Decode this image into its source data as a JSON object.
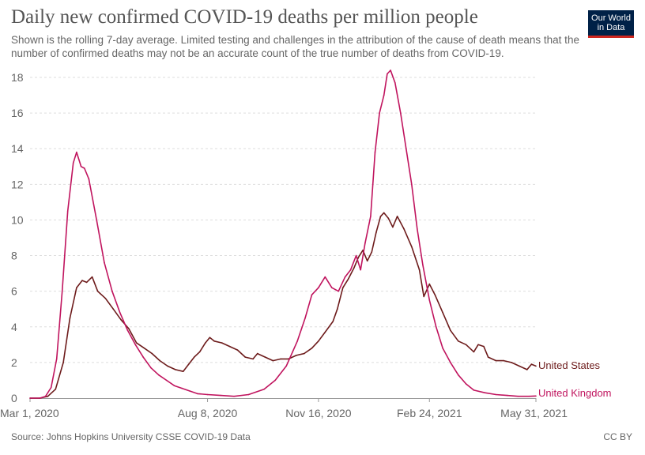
{
  "header": {
    "title": "Daily new confirmed COVID-19 deaths per million people",
    "subtitle": "Shown is the rolling 7-day average. Limited testing and challenges in the attribution of the cause of death means that the number of confirmed deaths may not be an accurate count of the true number of deaths from COVID-19.",
    "logo_line1": "Our World",
    "logo_line2": "in Data"
  },
  "footer": {
    "source": "Source: Johns Hopkins University CSSE COVID-19 Data",
    "license": "CC BY"
  },
  "colors": {
    "united_states": "#6d1b1b",
    "united_kingdom": "#c0145e",
    "logo_bg": "#002147",
    "logo_accent": "#ce261e",
    "gridline": "#dddddd"
  },
  "chart_data": {
    "type": "line",
    "x_type": "date",
    "xlim": [
      "2020-03-01",
      "2021-05-31"
    ],
    "ylim": [
      0,
      18
    ],
    "grid": true,
    "gridline_style": "dashed",
    "legend_placement": "end-of-line labels",
    "ylabel": "",
    "xlabel": "",
    "y_ticks": [
      0,
      2,
      4,
      6,
      8,
      10,
      12,
      14,
      16,
      18
    ],
    "x_ticks": [
      {
        "date": "2020-03-01",
        "label": "Mar 1, 2020"
      },
      {
        "date": "2020-08-08",
        "label": "Aug 8, 2020"
      },
      {
        "date": "2020-11-16",
        "label": "Nov 16, 2020"
      },
      {
        "date": "2021-02-24",
        "label": "Feb 24, 2021"
      },
      {
        "date": "2021-05-31",
        "label": "May 31, 2021"
      }
    ],
    "series": [
      {
        "name": "United States",
        "color": "#6d1b1b",
        "points": [
          [
            "2020-03-01",
            0
          ],
          [
            "2020-03-10",
            0
          ],
          [
            "2020-03-17",
            0.1
          ],
          [
            "2020-03-24",
            0.5
          ],
          [
            "2020-03-31",
            2.0
          ],
          [
            "2020-04-06",
            4.5
          ],
          [
            "2020-04-12",
            6.2
          ],
          [
            "2020-04-17",
            6.6
          ],
          [
            "2020-04-21",
            6.5
          ],
          [
            "2020-04-26",
            6.8
          ],
          [
            "2020-05-01",
            6.0
          ],
          [
            "2020-05-08",
            5.6
          ],
          [
            "2020-05-15",
            5.0
          ],
          [
            "2020-05-22",
            4.4
          ],
          [
            "2020-05-29",
            3.9
          ],
          [
            "2020-06-05",
            3.1
          ],
          [
            "2020-06-12",
            2.8
          ],
          [
            "2020-06-19",
            2.5
          ],
          [
            "2020-06-26",
            2.1
          ],
          [
            "2020-07-03",
            1.8
          ],
          [
            "2020-07-10",
            1.6
          ],
          [
            "2020-07-17",
            1.5
          ],
          [
            "2020-07-22",
            1.9
          ],
          [
            "2020-07-27",
            2.3
          ],
          [
            "2020-08-01",
            2.6
          ],
          [
            "2020-08-06",
            3.1
          ],
          [
            "2020-08-10",
            3.4
          ],
          [
            "2020-08-14",
            3.2
          ],
          [
            "2020-08-21",
            3.1
          ],
          [
            "2020-08-28",
            2.9
          ],
          [
            "2020-09-04",
            2.7
          ],
          [
            "2020-09-11",
            2.3
          ],
          [
            "2020-09-18",
            2.2
          ],
          [
            "2020-09-22",
            2.5
          ],
          [
            "2020-09-29",
            2.3
          ],
          [
            "2020-10-06",
            2.1
          ],
          [
            "2020-10-13",
            2.2
          ],
          [
            "2020-10-20",
            2.2
          ],
          [
            "2020-10-27",
            2.4
          ],
          [
            "2020-11-03",
            2.5
          ],
          [
            "2020-11-10",
            2.8
          ],
          [
            "2020-11-16",
            3.2
          ],
          [
            "2020-11-22",
            3.7
          ],
          [
            "2020-11-29",
            4.3
          ],
          [
            "2020-12-03",
            5.0
          ],
          [
            "2020-12-08",
            6.2
          ],
          [
            "2020-12-13",
            6.7
          ],
          [
            "2020-12-18",
            7.3
          ],
          [
            "2020-12-22",
            7.9
          ],
          [
            "2020-12-26",
            8.3
          ],
          [
            "2020-12-30",
            7.7
          ],
          [
            "2021-01-03",
            8.2
          ],
          [
            "2021-01-07",
            9.3
          ],
          [
            "2021-01-11",
            10.2
          ],
          [
            "2021-01-14",
            10.4
          ],
          [
            "2021-01-18",
            10.1
          ],
          [
            "2021-01-22",
            9.6
          ],
          [
            "2021-01-26",
            10.2
          ],
          [
            "2021-02-01",
            9.5
          ],
          [
            "2021-02-08",
            8.5
          ],
          [
            "2021-02-15",
            7.2
          ],
          [
            "2021-02-19",
            5.7
          ],
          [
            "2021-02-24",
            6.4
          ],
          [
            "2021-03-01",
            5.8
          ],
          [
            "2021-03-08",
            4.8
          ],
          [
            "2021-03-15",
            3.8
          ],
          [
            "2021-03-22",
            3.2
          ],
          [
            "2021-03-29",
            3.0
          ],
          [
            "2021-04-05",
            2.6
          ],
          [
            "2021-04-09",
            3.0
          ],
          [
            "2021-04-14",
            2.9
          ],
          [
            "2021-04-18",
            2.3
          ],
          [
            "2021-04-25",
            2.1
          ],
          [
            "2021-05-02",
            2.1
          ],
          [
            "2021-05-09",
            2.0
          ],
          [
            "2021-05-16",
            1.8
          ],
          [
            "2021-05-23",
            1.6
          ],
          [
            "2021-05-27",
            1.9
          ],
          [
            "2021-05-31",
            1.8
          ]
        ]
      },
      {
        "name": "United Kingdom",
        "color": "#c0145e",
        "points": [
          [
            "2020-03-01",
            0
          ],
          [
            "2020-03-10",
            0
          ],
          [
            "2020-03-15",
            0.1
          ],
          [
            "2020-03-20",
            0.6
          ],
          [
            "2020-03-25",
            2.2
          ],
          [
            "2020-03-30",
            6.0
          ],
          [
            "2020-04-04",
            10.5
          ],
          [
            "2020-04-09",
            13.2
          ],
          [
            "2020-04-12",
            13.8
          ],
          [
            "2020-04-16",
            13.0
          ],
          [
            "2020-04-19",
            12.9
          ],
          [
            "2020-04-23",
            12.3
          ],
          [
            "2020-04-30",
            10.0
          ],
          [
            "2020-05-07",
            7.6
          ],
          [
            "2020-05-14",
            6.0
          ],
          [
            "2020-05-21",
            4.8
          ],
          [
            "2020-05-28",
            3.8
          ],
          [
            "2020-06-04",
            3.0
          ],
          [
            "2020-06-11",
            2.3
          ],
          [
            "2020-06-18",
            1.7
          ],
          [
            "2020-06-25",
            1.3
          ],
          [
            "2020-07-02",
            1.0
          ],
          [
            "2020-07-09",
            0.7
          ],
          [
            "2020-07-16",
            0.55
          ],
          [
            "2020-07-23",
            0.4
          ],
          [
            "2020-07-30",
            0.25
          ],
          [
            "2020-08-08",
            0.2
          ],
          [
            "2020-08-20",
            0.15
          ],
          [
            "2020-09-01",
            0.1
          ],
          [
            "2020-09-14",
            0.2
          ],
          [
            "2020-09-28",
            0.5
          ],
          [
            "2020-10-08",
            1.0
          ],
          [
            "2020-10-18",
            1.8
          ],
          [
            "2020-10-28",
            3.2
          ],
          [
            "2020-11-04",
            4.5
          ],
          [
            "2020-11-10",
            5.8
          ],
          [
            "2020-11-16",
            6.2
          ],
          [
            "2020-11-22",
            6.8
          ],
          [
            "2020-11-28",
            6.2
          ],
          [
            "2020-12-04",
            6.0
          ],
          [
            "2020-12-10",
            6.8
          ],
          [
            "2020-12-15",
            7.2
          ],
          [
            "2020-12-20",
            8.0
          ],
          [
            "2020-12-24",
            7.2
          ],
          [
            "2020-12-28",
            8.7
          ],
          [
            "2021-01-02",
            10.2
          ],
          [
            "2021-01-06",
            13.8
          ],
          [
            "2021-01-10",
            16.0
          ],
          [
            "2021-01-14",
            17.0
          ],
          [
            "2021-01-17",
            18.2
          ],
          [
            "2021-01-20",
            18.4
          ],
          [
            "2021-01-24",
            17.7
          ],
          [
            "2021-01-29",
            16.0
          ],
          [
            "2021-02-03",
            14.0
          ],
          [
            "2021-02-08",
            12.0
          ],
          [
            "2021-02-13",
            9.5
          ],
          [
            "2021-02-18",
            7.5
          ],
          [
            "2021-02-24",
            5.5
          ],
          [
            "2021-03-02",
            4.0
          ],
          [
            "2021-03-08",
            2.8
          ],
          [
            "2021-03-15",
            2.0
          ],
          [
            "2021-03-22",
            1.3
          ],
          [
            "2021-03-29",
            0.8
          ],
          [
            "2021-04-05",
            0.45
          ],
          [
            "2021-04-15",
            0.3
          ],
          [
            "2021-04-25",
            0.2
          ],
          [
            "2021-05-05",
            0.15
          ],
          [
            "2021-05-15",
            0.1
          ],
          [
            "2021-05-25",
            0.1
          ],
          [
            "2021-05-31",
            0.12
          ]
        ]
      }
    ]
  }
}
